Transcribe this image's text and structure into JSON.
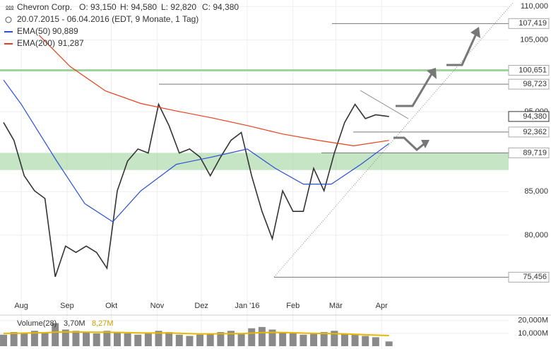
{
  "chart_data": {
    "type": "line",
    "title": "Chevron Corp.",
    "ohlc_labels": [
      "O: 93,150",
      "H: 94,580",
      "L: 92,820",
      "C: 94,380"
    ],
    "subtitle": "20.07.2015 - 06.04.2016 (EDT, 9 Monate, 1 Tag)",
    "log_scale": true,
    "grid": true,
    "xlim": [
      -2.4,
      342
    ],
    "xticks": [
      {
        "value": 12,
        "label": "Aug"
      },
      {
        "value": 43,
        "label": "Sep"
      },
      {
        "value": 73,
        "label": "Okt"
      },
      {
        "value": 104,
        "label": "Nov"
      },
      {
        "value": 134,
        "label": "Dez"
      },
      {
        "value": 165,
        "label": "Jan '16"
      },
      {
        "value": 196,
        "label": "Feb"
      },
      {
        "value": 225,
        "label": "Mär"
      },
      {
        "value": 256,
        "label": "Apr"
      }
    ],
    "ylim": [
      72,
      111
    ],
    "yticks": [
      {
        "value": 110,
        "label": "110,000"
      },
      {
        "value": 105,
        "label": "105,000"
      },
      {
        "value": 95,
        "label": "95,000"
      },
      {
        "value": 85,
        "label": "85,000"
      },
      {
        "value": 80,
        "label": "80,000"
      }
    ],
    "series": [
      {
        "name": "Chevron Corp.",
        "color": "#333333",
        "x": [
          0,
          7,
          14,
          21,
          28,
          35,
          42,
          49,
          56,
          63,
          70,
          77,
          84,
          91,
          98,
          105,
          112,
          119,
          126,
          133,
          140,
          147,
          154,
          161,
          168,
          175,
          182,
          189,
          196,
          203,
          210,
          217,
          224,
          231,
          238,
          245,
          252,
          261
        ],
        "values": [
          93.6,
          91.3,
          86.9,
          85.1,
          84.2,
          75.5,
          78.8,
          78.1,
          78.8,
          78.1,
          76.4,
          85.1,
          88.7,
          90.2,
          89.7,
          96.0,
          93.2,
          89.7,
          90.2,
          89.2,
          86.9,
          89.2,
          91.3,
          92.3,
          86.9,
          82.7,
          79.6,
          85.1,
          82.7,
          82.7,
          87.8,
          85.1,
          89.7,
          93.6,
          96.0,
          94.1,
          94.6,
          94.38
        ]
      },
      {
        "name": "EMA(50)",
        "color": "#2a4fd6",
        "value_label": "90,889",
        "x": [
          0,
          12,
          36,
          55,
          74,
          93,
          117,
          141,
          165,
          184,
          203,
          222,
          242,
          261
        ],
        "values": [
          99.3,
          96.0,
          88.7,
          83.6,
          81.5,
          85.1,
          88.3,
          89.2,
          90.2,
          87.8,
          85.9,
          85.9,
          88.3,
          90.889
        ]
      },
      {
        "name": "EMA(200)",
        "color": "#e8401c",
        "value_label": "91,287",
        "x": [
          24,
          45,
          69,
          93,
          117,
          141,
          165,
          189,
          213,
          237,
          261
        ],
        "values": [
          105.7,
          101.2,
          97.8,
          96.1,
          95.1,
          94.2,
          93.2,
          92.1,
          91.3,
          90.6,
          91.287
        ]
      }
    ],
    "levels": [
      {
        "value": 107.419,
        "label": "107,419"
      },
      {
        "value": 100.651,
        "label": "100,651"
      },
      {
        "value": 98.723,
        "label": "98,723"
      },
      {
        "value": 94.38,
        "label": "94,380"
      },
      {
        "value": 92.362,
        "label": "92,362"
      },
      {
        "value": 89.719,
        "label": "89,719"
      },
      {
        "value": 75.456,
        "label": "75,456"
      }
    ],
    "zone_low": 87.6,
    "volume": {
      "name": "Volume(28)",
      "color": "#8a8a8a",
      "value_label": "3,70M",
      "values": [
        9,
        11,
        10,
        12,
        11,
        18,
        13,
        12,
        11,
        10,
        12,
        11,
        10,
        9,
        10,
        12,
        11,
        9,
        8,
        9,
        10,
        11,
        12,
        10,
        14,
        15,
        13,
        11,
        10,
        9,
        10,
        11,
        12,
        10,
        9,
        8,
        7,
        3.7
      ],
      "average": {
        "color": "#e6b800",
        "value_label": "8,27M",
        "values": [
          10,
          10,
          10.2,
          10.4,
          10.5,
          11,
          11.2,
          11.1,
          11,
          10.9,
          10.9,
          10.8,
          10.6,
          10.4,
          10.3,
          10.4,
          10.3,
          10.1,
          9.8,
          9.6,
          9.6,
          9.7,
          9.9,
          9.8,
          10.2,
          10.6,
          10.8,
          10.7,
          10.5,
          10.2,
          10,
          9.9,
          9.8,
          9.6,
          9.3,
          8.9,
          8.6,
          8.27
        ]
      },
      "ylim": [
        0,
        21
      ],
      "yticks": [
        {
          "value": 20,
          "label": "20,000M"
        },
        {
          "value": 10,
          "label": "10,000M"
        }
      ]
    }
  }
}
